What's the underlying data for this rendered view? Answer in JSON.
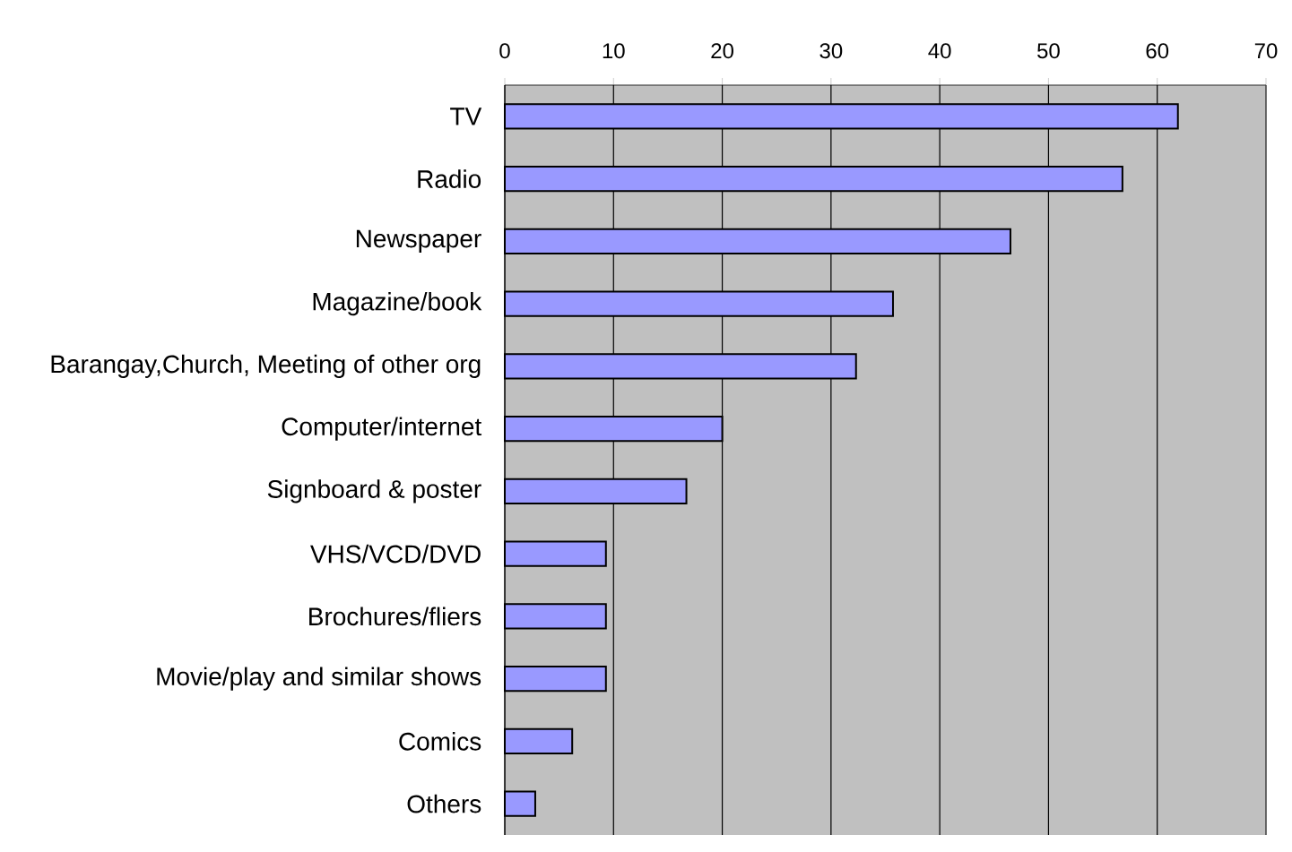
{
  "chart_data": {
    "type": "bar",
    "orientation": "horizontal",
    "categories": [
      "TV",
      "Radio",
      "Newspaper",
      "Magazine/book",
      "Barangay,Church, Meeting of other org",
      "Computer/internet",
      "Signboard & poster",
      "VHS/VCD/DVD",
      "Brochures/fliers",
      "Movie/play and similar shows",
      "Comics",
      "Others"
    ],
    "values": [
      61.9,
      56.8,
      46.5,
      35.7,
      32.3,
      20.0,
      16.7,
      9.3,
      9.3,
      9.3,
      6.2,
      2.8
    ],
    "color": "#9999ff",
    "xlim": [
      0,
      70
    ],
    "xticks": [
      0,
      10,
      20,
      30,
      40,
      50,
      60,
      70
    ],
    "grid": "x"
  }
}
